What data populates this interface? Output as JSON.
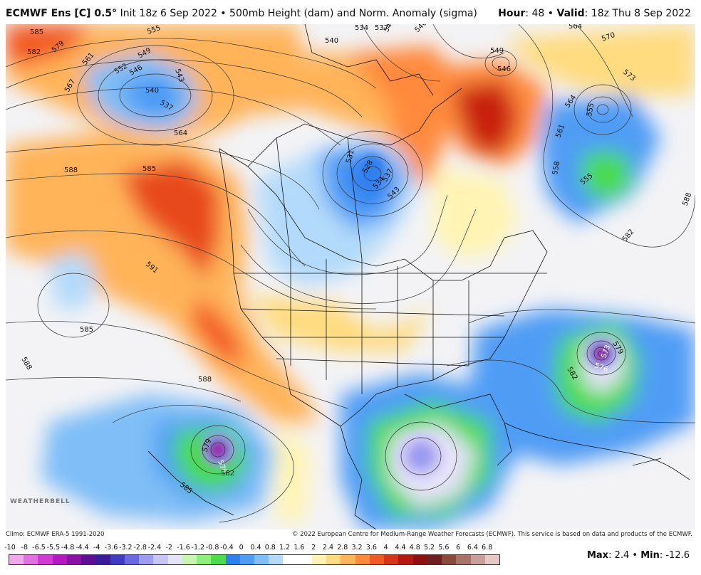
{
  "header": {
    "model": "ECMWF Ens [C] 0.5",
    "degree_symbol": "°",
    "init": " Init 18z 6 Sep 2022",
    "sep": " • ",
    "field": "500mb Height (dam) and Norm. Anomaly (sigma)",
    "hour_label": "Hour",
    "hour_value": ": 48",
    "valid_label": "Valid",
    "valid_value": ": 18z Thu 8 Sep 2022"
  },
  "footer": {
    "climo": "Climo: ECMWF ERA-5 1991-2020",
    "copyright": "© 2022 European Centre for Medium-Range Weather Forecasts (ECMWF). This service is based on data and products of the ECMWF."
  },
  "logo": "WEATHERBELL",
  "stats": {
    "max_label": "Max",
    "max_value": ": 2.4",
    "sep": " • ",
    "min_label": "Min",
    "min_value": ": -12.6"
  },
  "colorbar": {
    "ticks": [
      "-10",
      "-8",
      "-6.5",
      "-5.5",
      "-4.8",
      "-4.4",
      "-4",
      "-3.6",
      "-3.2",
      "-2.8",
      "-2.4",
      "-2",
      "-1.6",
      "-1.2",
      "-0.8",
      "-0.4",
      "0",
      "0.4",
      "0.8",
      "1.2",
      "1.6",
      "2",
      "2.4",
      "2.8",
      "3.2",
      "3.6",
      "4",
      "4.4",
      "4.8",
      "5.2",
      "5.6",
      "6",
      "6.4",
      "6.8"
    ],
    "colors": [
      "#f2a6ee",
      "#e46fe3",
      "#d13ad4",
      "#b418c2",
      "#8c10a8",
      "#5e0e96",
      "#3b1a9c",
      "#3f3cc2",
      "#6a6ae0",
      "#9e9cf0",
      "#c8c4f6",
      "#e6e2fa",
      "#caf5b0",
      "#8ef07a",
      "#4cdc4a",
      "#2e7ff0",
      "#4f9cf5",
      "#7fbef7",
      "#b3dafa",
      "#ffffff",
      "#ffffff",
      "#fff4b4",
      "#ffdc80",
      "#ffb45a",
      "#ff8a3c",
      "#f25a24",
      "#d8341a",
      "#b41812",
      "#8e1010",
      "#6e2020",
      "#8a4a3c",
      "#a8746a",
      "#c8a09a",
      "#e6c8c4"
    ]
  },
  "contour_labels": [
    {
      "t": "585"
    },
    {
      "t": "582"
    },
    {
      "t": "579"
    },
    {
      "t": "567"
    },
    {
      "t": "561"
    },
    {
      "t": "555"
    },
    {
      "t": "552"
    },
    {
      "t": "549"
    },
    {
      "t": "546"
    },
    {
      "t": "540"
    },
    {
      "t": "537"
    },
    {
      "t": "543"
    },
    {
      "t": "540"
    },
    {
      "t": "534"
    },
    {
      "t": "537"
    },
    {
      "t": "543"
    },
    {
      "t": "546"
    },
    {
      "t": "549"
    },
    {
      "t": "546"
    },
    {
      "t": "564"
    },
    {
      "t": "570"
    },
    {
      "t": "573"
    },
    {
      "t": "564"
    },
    {
      "t": "561"
    },
    {
      "t": "558"
    },
    {
      "t": "555"
    },
    {
      "t": "555"
    },
    {
      "t": "588"
    },
    {
      "t": "582"
    },
    {
      "t": "588"
    },
    {
      "t": "585"
    },
    {
      "t": "591"
    },
    {
      "t": "564"
    },
    {
      "t": "531"
    },
    {
      "t": "534"
    },
    {
      "t": "537"
    },
    {
      "t": "543"
    },
    {
      "t": "528"
    },
    {
      "t": "585"
    },
    {
      "t": "588"
    },
    {
      "t": "588"
    },
    {
      "t": "579"
    },
    {
      "t": "576"
    },
    {
      "t": "582"
    },
    {
      "t": "585"
    },
    {
      "t": "582"
    },
    {
      "t": "579"
    },
    {
      "t": "576"
    },
    {
      "t": "573"
    }
  ]
}
